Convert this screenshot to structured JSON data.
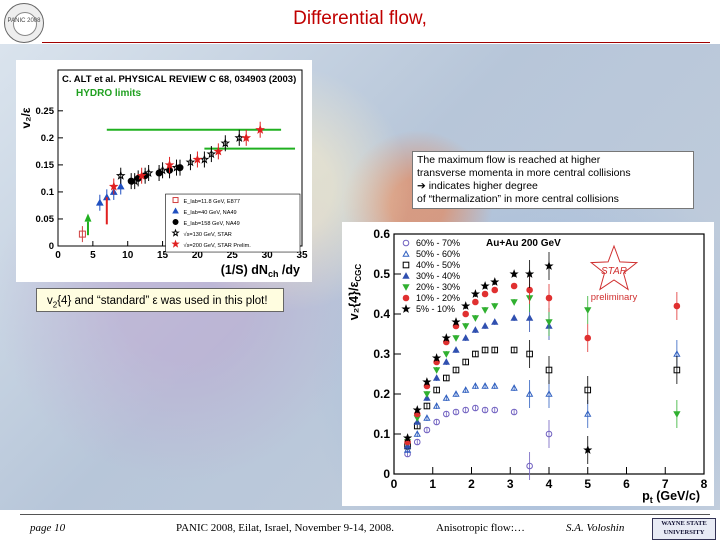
{
  "slide": {
    "title": "Differential flow,",
    "logo_text": "PANIC 2008",
    "note_lines": [
      "The maximum flow is reached at higher",
      "transverse momenta in more central collisions",
      "➔ indicates higher degree",
      "of “thermalization” in more central collisions"
    ],
    "v2_note_pre": "v",
    "v2_note_sub": "2",
    "v2_note_post": "{4} and “standard” ε was used in this plot!",
    "footer": {
      "page": "page  10",
      "conference": "PANIC 2008, Eilat, Israel, November 9-14, 2008.",
      "topic": "Anisotropic flow:…",
      "author": "S.A. Voloshin",
      "university": "WAYNE STATE UNIVERSITY"
    }
  },
  "chart_data": [
    {
      "type": "scatter",
      "header": "C. ALT et al. PHYSICAL REVIEW C 68, 034903 (2003)",
      "hydro_label": "HYDRO limits",
      "ylabel": "v₂/ε",
      "xlabel": "(1/S) dN",
      "xlabel_sub": "ch",
      "xlabel_post": " /dy",
      "xlim": [
        0,
        35
      ],
      "ylim": [
        0,
        0.27
      ],
      "x_ticks": [
        "0",
        "5",
        "10",
        "15",
        "20",
        "25",
        "30",
        "35"
      ],
      "y_ticks": [
        "0",
        "0.05",
        "0.1",
        "0.15",
        "0.2",
        "0.25"
      ],
      "hydro_lines": [
        {
          "x": [
            7,
            32
          ],
          "y": [
            0.215,
            0.215
          ]
        },
        {
          "x": [
            21,
            34
          ],
          "y": [
            0.18,
            0.18
          ]
        }
      ],
      "legend": [
        "E_lab=11.8 GeV, E877",
        "E_lab=40 GeV, NA49",
        "E_lab=158 GeV, NA49",
        "√s=130 GeV, STAR",
        "√s=200 GeV, STAR Prelim."
      ],
      "series": [
        {
          "color": "#d04040",
          "marker": "square-open",
          "x": [
            3.5
          ],
          "y": [
            0.022
          ]
        },
        {
          "color": "#2050c0",
          "marker": "triangle",
          "x": [
            6,
            7,
            8,
            9
          ],
          "y": [
            0.08,
            0.09,
            0.1,
            0.11
          ]
        },
        {
          "color": "#000000",
          "marker": "circle",
          "x": [
            10.5,
            11.5,
            12.5,
            14.5,
            16,
            17.5
          ],
          "y": [
            0.12,
            0.125,
            0.13,
            0.135,
            0.14,
            0.145
          ]
        },
        {
          "color": "#000000",
          "marker": "star-open",
          "x": [
            9,
            11,
            13,
            15,
            17,
            19,
            21,
            22,
            24,
            26
          ],
          "y": [
            0.13,
            0.12,
            0.135,
            0.14,
            0.145,
            0.155,
            0.16,
            0.17,
            0.19,
            0.2
          ]
        },
        {
          "color": "#e02020",
          "marker": "star",
          "x": [
            8,
            12,
            16,
            20,
            23,
            27,
            29
          ],
          "y": [
            0.11,
            0.13,
            0.15,
            0.16,
            0.175,
            0.2,
            0.215
          ]
        }
      ]
    },
    {
      "type": "scatter",
      "ylabel": "v₂{4}/ε",
      "ylabel_sub": "CGC",
      "xlabel": "p",
      "xlabel_sub": "t",
      "xlabel_post": " (GeV/c)",
      "xlim": [
        0,
        8
      ],
      "ylim": [
        0,
        0.6
      ],
      "x_ticks": [
        "0",
        "1",
        "2",
        "3",
        "4",
        "5",
        "6",
        "7",
        "8"
      ],
      "y_ticks": [
        "0",
        "0.1",
        "0.2",
        "0.3",
        "0.4",
        "0.5",
        "0.6"
      ],
      "system_label": "Au+Au 200 GeV",
      "badge_label": "STAR",
      "preliminary_label": "preliminary",
      "series": [
        {
          "name": "60% - 70%",
          "color": "#7060c0",
          "marker": "circle-open",
          "x": [
            0.35,
            0.6,
            0.85,
            1.1,
            1.35,
            1.6,
            1.85,
            2.1,
            2.35,
            2.6,
            3.1,
            3.5,
            4.0
          ],
          "y": [
            0.05,
            0.08,
            0.11,
            0.13,
            0.15,
            0.155,
            0.16,
            0.165,
            0.16,
            0.16,
            0.155,
            0.02,
            0.1
          ]
        },
        {
          "name": "50% - 60%",
          "color": "#3060c0",
          "marker": "triangle-open",
          "x": [
            0.35,
            0.6,
            0.85,
            1.1,
            1.35,
            1.6,
            1.85,
            2.1,
            2.35,
            2.6,
            3.1,
            3.5,
            4.0,
            5.0,
            7.3
          ],
          "y": [
            0.06,
            0.1,
            0.14,
            0.17,
            0.19,
            0.2,
            0.21,
            0.22,
            0.22,
            0.22,
            0.215,
            0.2,
            0.2,
            0.15,
            0.3
          ]
        },
        {
          "name": "40% - 50%",
          "color": "#000000",
          "marker": "square-open",
          "x": [
            0.35,
            0.6,
            0.85,
            1.1,
            1.35,
            1.6,
            1.85,
            2.1,
            2.35,
            2.6,
            3.1,
            3.5,
            4.0,
            5.0,
            7.3
          ],
          "y": [
            0.07,
            0.12,
            0.17,
            0.21,
            0.24,
            0.26,
            0.28,
            0.3,
            0.31,
            0.31,
            0.31,
            0.3,
            0.26,
            0.21,
            0.26
          ]
        },
        {
          "name": "30% - 40%",
          "color": "#3050b0",
          "marker": "triangle",
          "x": [
            0.35,
            0.6,
            0.85,
            1.1,
            1.35,
            1.6,
            1.85,
            2.1,
            2.35,
            2.6,
            3.1,
            3.5,
            4.0
          ],
          "y": [
            0.07,
            0.13,
            0.19,
            0.24,
            0.28,
            0.31,
            0.34,
            0.36,
            0.37,
            0.38,
            0.39,
            0.39,
            0.37
          ]
        },
        {
          "name": "20% - 30%",
          "color": "#30b030",
          "marker": "triangle-down",
          "x": [
            0.35,
            0.6,
            0.85,
            1.1,
            1.35,
            1.6,
            1.85,
            2.1,
            2.35,
            2.6,
            3.1,
            3.5,
            4.0,
            5.0,
            7.3
          ],
          "y": [
            0.08,
            0.14,
            0.2,
            0.26,
            0.3,
            0.34,
            0.37,
            0.39,
            0.41,
            0.42,
            0.43,
            0.44,
            0.38,
            0.41,
            0.15
          ]
        },
        {
          "name": "10% - 20%",
          "color": "#e03030",
          "marker": "circle",
          "x": [
            0.35,
            0.6,
            0.85,
            1.1,
            1.35,
            1.6,
            1.85,
            2.1,
            2.35,
            2.6,
            3.1,
            3.5,
            4.0,
            5.0,
            7.3
          ],
          "y": [
            0.08,
            0.15,
            0.22,
            0.28,
            0.33,
            0.37,
            0.4,
            0.43,
            0.45,
            0.46,
            0.47,
            0.46,
            0.44,
            0.34,
            0.42
          ]
        },
        {
          "name": "5% - 10%",
          "color": "#000000",
          "marker": "star",
          "x": [
            0.35,
            0.6,
            0.85,
            1.1,
            1.35,
            1.6,
            1.85,
            2.1,
            2.35,
            2.6,
            3.1,
            3.5,
            4.0,
            5.0
          ],
          "y": [
            0.09,
            0.16,
            0.23,
            0.29,
            0.34,
            0.38,
            0.42,
            0.45,
            0.47,
            0.48,
            0.5,
            0.5,
            0.52,
            0.06
          ]
        }
      ]
    }
  ]
}
